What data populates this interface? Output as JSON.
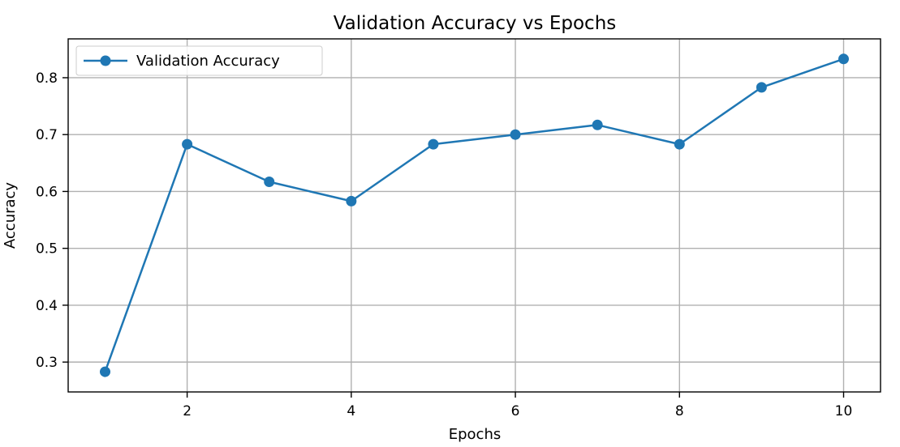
{
  "chart_data": {
    "type": "line",
    "title": "Validation Accuracy vs Epochs",
    "xlabel": "Epochs",
    "ylabel": "Accuracy",
    "xlim": [
      0.55,
      10.45
    ],
    "ylim": [
      0.2475,
      0.8683
    ],
    "x_ticks": [
      2,
      4,
      6,
      8,
      10
    ],
    "y_ticks": [
      0.3,
      0.4,
      0.5,
      0.6,
      0.7,
      0.8
    ],
    "x_tick_labels": [
      "2",
      "4",
      "6",
      "8",
      "10"
    ],
    "y_tick_labels": [
      "0.3",
      "0.4",
      "0.5",
      "0.6",
      "0.7",
      "0.8"
    ],
    "grid": true,
    "legend": "top-left",
    "series": [
      {
        "name": "Validation Accuracy",
        "color": "#1f77b4",
        "marker": "circle",
        "x": [
          1,
          2,
          3,
          4,
          5,
          6,
          7,
          8,
          9,
          10
        ],
        "y": [
          0.283,
          0.683,
          0.617,
          0.583,
          0.683,
          0.7,
          0.717,
          0.683,
          0.783,
          0.833
        ]
      }
    ]
  }
}
